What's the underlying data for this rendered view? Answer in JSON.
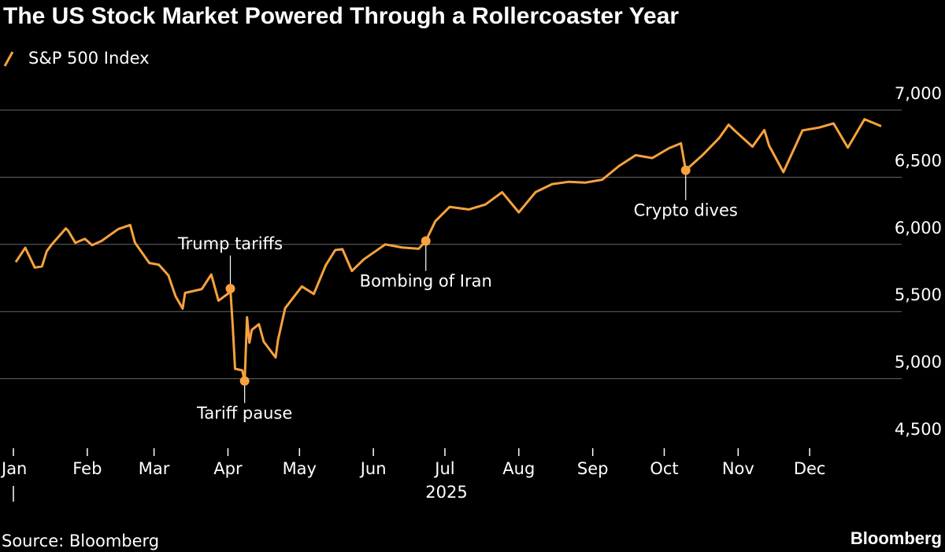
{
  "chart_data": {
    "type": "line",
    "title": "The US Stock Market Powered Through a Rollercoaster Year",
    "xlabel": "2025",
    "source": "Source: Bloomberg",
    "brand": "Bloomberg",
    "x": [
      1,
      5,
      9,
      12,
      14,
      16,
      22,
      23,
      26,
      30,
      33,
      37,
      44,
      49,
      51,
      57,
      61,
      65,
      68,
      71,
      72,
      79,
      83,
      86,
      90,
      91,
      92,
      93,
      96,
      97,
      98,
      99,
      100,
      103,
      105,
      110,
      111,
      114,
      121,
      126,
      131,
      135,
      138,
      142,
      147,
      156,
      163,
      170,
      173,
      177,
      183,
      191,
      198,
      205,
      212,
      219,
      226,
      233,
      240,
      247,
      254,
      261,
      268,
      275,
      280,
      282,
      289,
      296,
      300,
      303,
      310,
      315,
      317,
      323,
      331,
      338,
      344,
      350,
      357,
      364
    ],
    "series": [
      {
        "name": "S&P 500 Index",
        "color": "#f7a23e",
        "values": [
          5868,
          5975,
          5827,
          5836,
          5950,
          5997,
          6119,
          6101,
          6012,
          6041,
          5994,
          6026,
          6114,
          6144,
          6013,
          5861,
          5849,
          5770,
          5614,
          5522,
          5639,
          5667,
          5776,
          5581,
          5633,
          5671,
          5396,
          5074,
          5062,
          4983,
          5457,
          5268,
          5363,
          5406,
          5276,
          5158,
          5288,
          5525,
          5687,
          5631,
          5844,
          5958,
          5964,
          5802,
          5889,
          6000,
          5977,
          5967,
          6025,
          6173,
          6279,
          6260,
          6297,
          6389,
          6238,
          6389,
          6449,
          6466,
          6460,
          6482,
          6584,
          6664,
          6643,
          6716,
          6753,
          6552,
          6664,
          6791,
          6891,
          6840,
          6728,
          6851,
          6734,
          6538,
          6849,
          6870,
          6901,
          6721,
          6932,
          6880
        ]
      }
    ],
    "xlim": [
      0,
      365
    ],
    "xticks": [
      {
        "value": 0,
        "label": "Jan"
      },
      {
        "value": 31,
        "label": "Feb"
      },
      {
        "value": 59,
        "label": "Mar"
      },
      {
        "value": 90,
        "label": "Apr"
      },
      {
        "value": 120,
        "label": "May"
      },
      {
        "value": 151,
        "label": "Jun"
      },
      {
        "value": 181,
        "label": "Jul"
      },
      {
        "value": 212,
        "label": "Aug"
      },
      {
        "value": 243,
        "label": "Sep"
      },
      {
        "value": 273,
        "label": "Oct"
      },
      {
        "value": 304,
        "label": "Nov"
      },
      {
        "value": 334,
        "label": "Dec"
      }
    ],
    "ylim": [
      4500,
      7000
    ],
    "yticks": [
      {
        "value": 4500,
        "label": "4,500"
      },
      {
        "value": 5000,
        "label": "5,000"
      },
      {
        "value": 5500,
        "label": "5,500"
      },
      {
        "value": 6000,
        "label": "6,000"
      },
      {
        "value": 6500,
        "label": "6,500"
      },
      {
        "value": 7000,
        "label": "7,000"
      }
    ],
    "grid": true,
    "annotations": [
      {
        "text": "Trump tariffs",
        "x": 91,
        "y": 5671,
        "position": "above"
      },
      {
        "text": "Tariff pause",
        "x": 97,
        "y": 4983,
        "position": "below"
      },
      {
        "text": "Bombing of Iran",
        "x": 173,
        "y": 6025,
        "position": "below"
      },
      {
        "text": "Crypto dives",
        "x": 282,
        "y": 6552,
        "position": "below"
      }
    ]
  }
}
